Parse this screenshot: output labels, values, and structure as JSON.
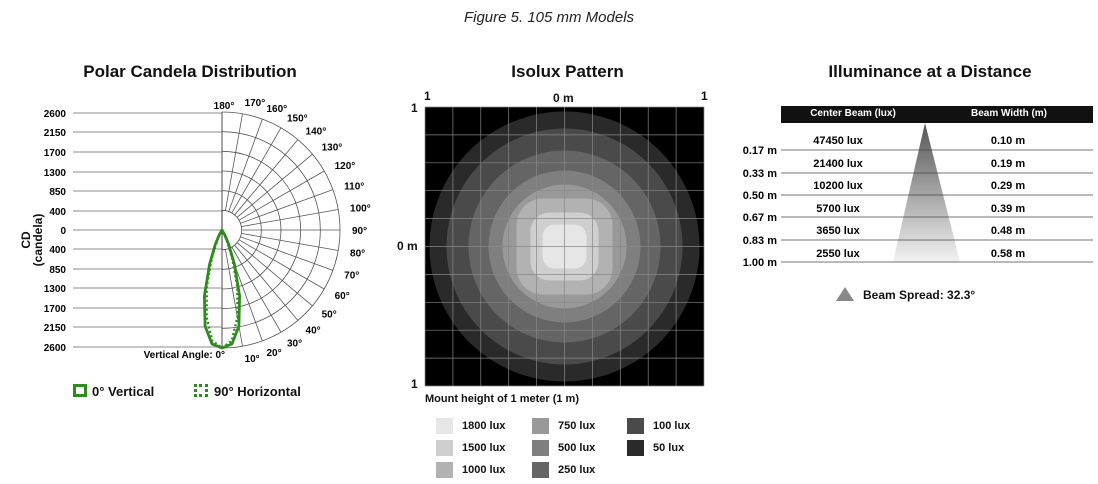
{
  "figure_title": "Figure 5. 105 mm Models",
  "chart_data": [
    {
      "type": "polar",
      "title": "Polar Candela Distribution",
      "ylabel": "CD (candela)",
      "radial_ticks_upper": [
        "2600",
        "2150",
        "1700",
        "1300",
        "850",
        "400",
        "0"
      ],
      "radial_ticks_lower": [
        "400",
        "850",
        "1300",
        "1700",
        "2150",
        "2600"
      ],
      "radial_range": [
        0,
        2600
      ],
      "angle_labels": [
        "180°",
        "170°",
        "160°",
        "150°",
        "140°",
        "130°",
        "120°",
        "110°",
        "100°",
        "90°",
        "80°",
        "70°",
        "60°",
        "50°",
        "40°",
        "30°",
        "20°",
        "10°",
        "0°"
      ],
      "angle_label_bottom_prefix": "Vertical Angle:",
      "series": [
        {
          "name": "0° Vertical",
          "style": "solid",
          "color": "#2e8b1e",
          "points": [
            [
              0,
              2600
            ],
            [
              5,
              2520
            ],
            [
              10,
              2150
            ],
            [
              15,
              1500
            ],
            [
              20,
              800
            ],
            [
              25,
              350
            ],
            [
              30,
              120
            ],
            [
              35,
              0
            ]
          ]
        },
        {
          "name": "90° Horizontal",
          "style": "dotted",
          "color": "#2e8b1e",
          "points": [
            [
              0,
              2600
            ],
            [
              5,
              2450
            ],
            [
              10,
              1950
            ],
            [
              15,
              1300
            ],
            [
              20,
              650
            ],
            [
              25,
              250
            ],
            [
              30,
              60
            ],
            [
              33,
              0
            ]
          ]
        }
      ],
      "legend_placement": "bottom"
    },
    {
      "type": "heatmap",
      "title": "Isolux Pattern",
      "top_labels": [
        "1",
        "0 m",
        "1"
      ],
      "left_labels": [
        "1",
        "0 m",
        "1"
      ],
      "xlabel": "Mount height of 1 meter (1 m)",
      "grid": true,
      "levels": [
        {
          "label": "1800 lux",
          "color": "#e6e6e6"
        },
        {
          "label": "1500 lux",
          "color": "#cfcfcf"
        },
        {
          "label": "1000 lux",
          "color": "#b2b2b2"
        },
        {
          "label": "750 lux",
          "color": "#999999"
        },
        {
          "label": "500 lux",
          "color": "#7f7f7f"
        },
        {
          "label": "250 lux",
          "color": "#656565"
        },
        {
          "label": "100 lux",
          "color": "#4a4a4a"
        },
        {
          "label": "50 lux",
          "color": "#2a2a2a"
        }
      ],
      "background": "#000000"
    },
    {
      "type": "table",
      "title": "Illuminance at a Distance",
      "columns": [
        "Center Beam (lux)",
        "Beam Width (m)"
      ],
      "distances": [
        "0.17 m",
        "0.33 m",
        "0.50 m",
        "0.67 m",
        "0.83 m",
        "1.00 m"
      ],
      "center_beam": [
        "47450 lux",
        "21400 lux",
        "10200 lux",
        "5700 lux",
        "3650 lux",
        "2550 lux"
      ],
      "beam_width": [
        "0.10 m",
        "0.19 m",
        "0.29 m",
        "0.39 m",
        "0.48 m",
        "0.58 m"
      ],
      "beam_spread": "Beam Spread: 32.3°"
    }
  ],
  "legend": {
    "vertical": "0° Vertical",
    "horizontal": "90° Horizontal"
  }
}
